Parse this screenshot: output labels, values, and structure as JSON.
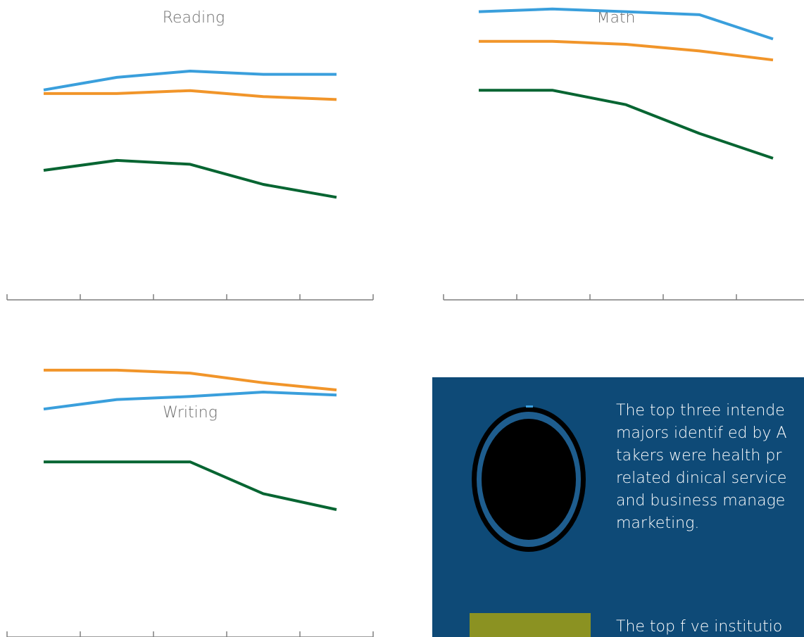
{
  "colors": {
    "series_blue": "#3a9fdc",
    "series_orange": "#f1952a",
    "series_green": "#076532",
    "axis": "#7f7f7f",
    "panel_bg": "#0e4a77",
    "panel_text": "#ffffff"
  },
  "chart_data": [
    {
      "type": "line",
      "title": "Reading",
      "categories": [
        "",
        "",
        "",
        "",
        ""
      ],
      "ylim": [
        0,
        1
      ],
      "grid": false,
      "series": [
        {
          "values": [
            0.7,
            0.742,
            0.763,
            0.752,
            0.752
          ]
        },
        {
          "values": [
            0.688,
            0.688,
            0.698,
            0.678,
            0.668
          ]
        },
        {
          "values": [
            0.432,
            0.465,
            0.452,
            0.385,
            0.342
          ]
        }
      ]
    },
    {
      "type": "line",
      "title": "Math",
      "categories": [
        "",
        "",
        "",
        "",
        ""
      ],
      "ylim": [
        0,
        1
      ],
      "grid": false,
      "series": [
        {
          "values": [
            0.961,
            0.97,
            0.961,
            0.951,
            0.87
          ]
        },
        {
          "values": [
            0.862,
            0.862,
            0.852,
            0.83,
            0.8
          ]
        },
        {
          "values": [
            0.699,
            0.699,
            0.651,
            0.555,
            0.472
          ]
        }
      ]
    },
    {
      "type": "line",
      "title": "Writing",
      "categories": [
        "",
        "",
        "",
        "",
        ""
      ],
      "ylim": [
        0,
        1
      ],
      "grid": false,
      "series": [
        {
          "values": [
            0.76,
            0.792,
            0.802,
            0.817,
            0.807
          ]
        },
        {
          "values": [
            0.89,
            0.89,
            0.88,
            0.848,
            0.824
          ]
        },
        {
          "values": [
            0.584,
            0.584,
            0.584,
            0.478,
            0.425
          ]
        }
      ]
    }
  ],
  "panel": {
    "paragraph1": "The top three intende\nmajors identif ed by A\ntakers were health pr\nrelated dinical service\nand business manage\nmarketing.",
    "paragraph2": "The top f ve institutio\nSAT scores from AISD"
  }
}
